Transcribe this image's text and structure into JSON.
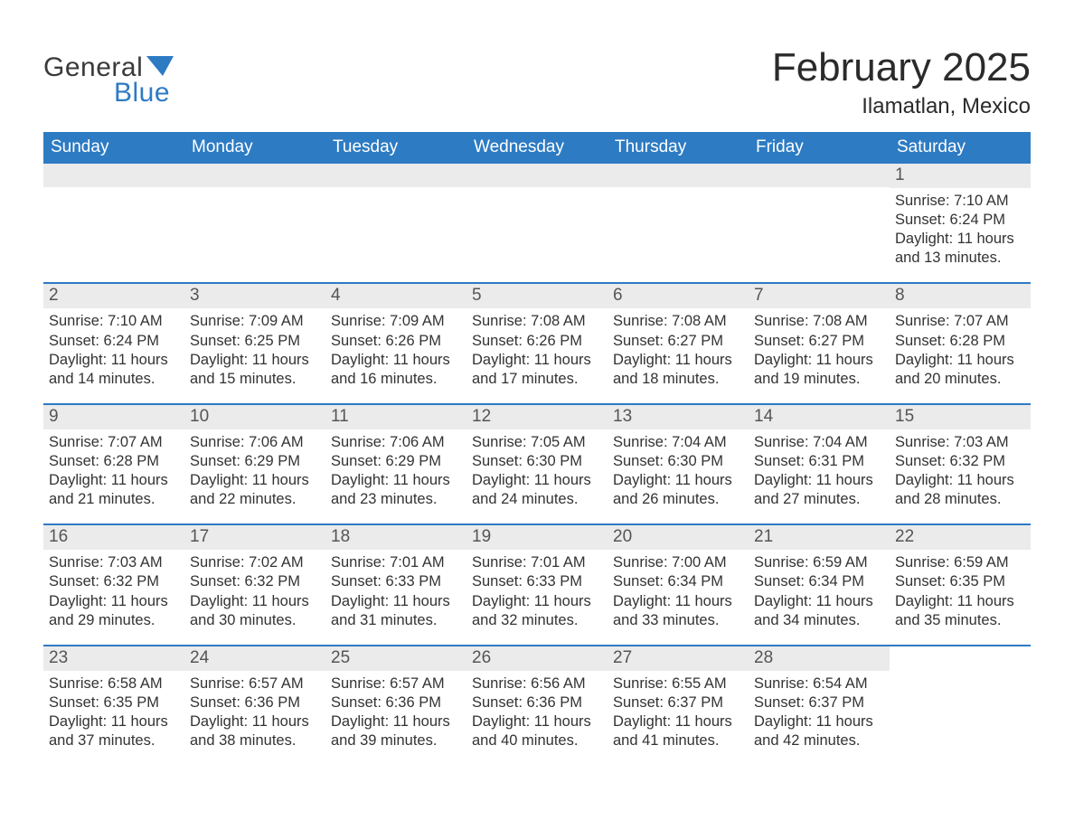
{
  "brand": {
    "word1": "General",
    "word2": "Blue",
    "flag_color": "#2d7bc3",
    "text_color_dark": "#3a3a3a"
  },
  "title": "February 2025",
  "location": "Ilamatlan, Mexico",
  "colors": {
    "header_bg": "#2d7bc3",
    "header_text": "#ffffff",
    "strip_bg": "#ebebeb",
    "day_num_color": "#555555",
    "body_text": "#333333",
    "divider": "#2d7bc3",
    "page_bg": "#ffffff"
  },
  "typography": {
    "title_fontsize": 44,
    "location_fontsize": 24,
    "dow_fontsize": 19,
    "daynum_fontsize": 19,
    "body_fontsize": 16.5
  },
  "days_of_week": [
    "Sunday",
    "Monday",
    "Tuesday",
    "Wednesday",
    "Thursday",
    "Friday",
    "Saturday"
  ],
  "weeks": [
    [
      {
        "empty": true
      },
      {
        "empty": true
      },
      {
        "empty": true
      },
      {
        "empty": true
      },
      {
        "empty": true
      },
      {
        "empty": true
      },
      {
        "day": "1",
        "sunrise": "Sunrise: 7:10 AM",
        "sunset": "Sunset: 6:24 PM",
        "daylight": "Daylight: 11 hours and 13 minutes."
      }
    ],
    [
      {
        "day": "2",
        "sunrise": "Sunrise: 7:10 AM",
        "sunset": "Sunset: 6:24 PM",
        "daylight": "Daylight: 11 hours and 14 minutes."
      },
      {
        "day": "3",
        "sunrise": "Sunrise: 7:09 AM",
        "sunset": "Sunset: 6:25 PM",
        "daylight": "Daylight: 11 hours and 15 minutes."
      },
      {
        "day": "4",
        "sunrise": "Sunrise: 7:09 AM",
        "sunset": "Sunset: 6:26 PM",
        "daylight": "Daylight: 11 hours and 16 minutes."
      },
      {
        "day": "5",
        "sunrise": "Sunrise: 7:08 AM",
        "sunset": "Sunset: 6:26 PM",
        "daylight": "Daylight: 11 hours and 17 minutes."
      },
      {
        "day": "6",
        "sunrise": "Sunrise: 7:08 AM",
        "sunset": "Sunset: 6:27 PM",
        "daylight": "Daylight: 11 hours and 18 minutes."
      },
      {
        "day": "7",
        "sunrise": "Sunrise: 7:08 AM",
        "sunset": "Sunset: 6:27 PM",
        "daylight": "Daylight: 11 hours and 19 minutes."
      },
      {
        "day": "8",
        "sunrise": "Sunrise: 7:07 AM",
        "sunset": "Sunset: 6:28 PM",
        "daylight": "Daylight: 11 hours and 20 minutes."
      }
    ],
    [
      {
        "day": "9",
        "sunrise": "Sunrise: 7:07 AM",
        "sunset": "Sunset: 6:28 PM",
        "daylight": "Daylight: 11 hours and 21 minutes."
      },
      {
        "day": "10",
        "sunrise": "Sunrise: 7:06 AM",
        "sunset": "Sunset: 6:29 PM",
        "daylight": "Daylight: 11 hours and 22 minutes."
      },
      {
        "day": "11",
        "sunrise": "Sunrise: 7:06 AM",
        "sunset": "Sunset: 6:29 PM",
        "daylight": "Daylight: 11 hours and 23 minutes."
      },
      {
        "day": "12",
        "sunrise": "Sunrise: 7:05 AM",
        "sunset": "Sunset: 6:30 PM",
        "daylight": "Daylight: 11 hours and 24 minutes."
      },
      {
        "day": "13",
        "sunrise": "Sunrise: 7:04 AM",
        "sunset": "Sunset: 6:30 PM",
        "daylight": "Daylight: 11 hours and 26 minutes."
      },
      {
        "day": "14",
        "sunrise": "Sunrise: 7:04 AM",
        "sunset": "Sunset: 6:31 PM",
        "daylight": "Daylight: 11 hours and 27 minutes."
      },
      {
        "day": "15",
        "sunrise": "Sunrise: 7:03 AM",
        "sunset": "Sunset: 6:32 PM",
        "daylight": "Daylight: 11 hours and 28 minutes."
      }
    ],
    [
      {
        "day": "16",
        "sunrise": "Sunrise: 7:03 AM",
        "sunset": "Sunset: 6:32 PM",
        "daylight": "Daylight: 11 hours and 29 minutes."
      },
      {
        "day": "17",
        "sunrise": "Sunrise: 7:02 AM",
        "sunset": "Sunset: 6:32 PM",
        "daylight": "Daylight: 11 hours and 30 minutes."
      },
      {
        "day": "18",
        "sunrise": "Sunrise: 7:01 AM",
        "sunset": "Sunset: 6:33 PM",
        "daylight": "Daylight: 11 hours and 31 minutes."
      },
      {
        "day": "19",
        "sunrise": "Sunrise: 7:01 AM",
        "sunset": "Sunset: 6:33 PM",
        "daylight": "Daylight: 11 hours and 32 minutes."
      },
      {
        "day": "20",
        "sunrise": "Sunrise: 7:00 AM",
        "sunset": "Sunset: 6:34 PM",
        "daylight": "Daylight: 11 hours and 33 minutes."
      },
      {
        "day": "21",
        "sunrise": "Sunrise: 6:59 AM",
        "sunset": "Sunset: 6:34 PM",
        "daylight": "Daylight: 11 hours and 34 minutes."
      },
      {
        "day": "22",
        "sunrise": "Sunrise: 6:59 AM",
        "sunset": "Sunset: 6:35 PM",
        "daylight": "Daylight: 11 hours and 35 minutes."
      }
    ],
    [
      {
        "day": "23",
        "sunrise": "Sunrise: 6:58 AM",
        "sunset": "Sunset: 6:35 PM",
        "daylight": "Daylight: 11 hours and 37 minutes."
      },
      {
        "day": "24",
        "sunrise": "Sunrise: 6:57 AM",
        "sunset": "Sunset: 6:36 PM",
        "daylight": "Daylight: 11 hours and 38 minutes."
      },
      {
        "day": "25",
        "sunrise": "Sunrise: 6:57 AM",
        "sunset": "Sunset: 6:36 PM",
        "daylight": "Daylight: 11 hours and 39 minutes."
      },
      {
        "day": "26",
        "sunrise": "Sunrise: 6:56 AM",
        "sunset": "Sunset: 6:36 PM",
        "daylight": "Daylight: 11 hours and 40 minutes."
      },
      {
        "day": "27",
        "sunrise": "Sunrise: 6:55 AM",
        "sunset": "Sunset: 6:37 PM",
        "daylight": "Daylight: 11 hours and 41 minutes."
      },
      {
        "day": "28",
        "sunrise": "Sunrise: 6:54 AM",
        "sunset": "Sunset: 6:37 PM",
        "daylight": "Daylight: 11 hours and 42 minutes."
      },
      {
        "empty": true,
        "no_strip": true
      }
    ]
  ]
}
